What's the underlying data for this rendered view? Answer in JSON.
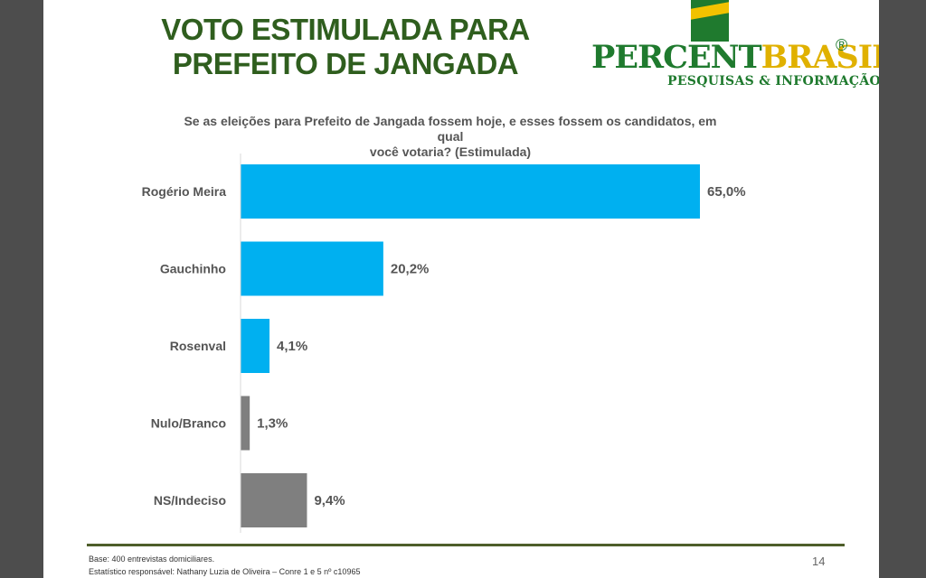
{
  "slide": {
    "title_line1": "VOTO ESTIMULADA PARA",
    "title_line2": "PREFEITO DE JANGADA",
    "question_line1": "Se as eleições para Prefeito de Jangada fossem hoje, e esses fossem os candidatos, em qual",
    "question_line2": "você votaria? (Estimulada)",
    "footer_base": "Base: 400 entrevistas domiciliares.",
    "footer_stat": "Estatístico responsável: Nathany Luzia de Oliveira – Conre 1 e 5 nº c10965",
    "page_number": "14"
  },
  "logo": {
    "word_part1": "PERCENT",
    "word_part2": "BRASIL",
    "registered": "®",
    "tagline": "PESQUISAS & INFORMAÇÃO",
    "colors": {
      "green": "#1f7a2e",
      "yellow": "#e0b100"
    }
  },
  "chart_data": {
    "type": "bar",
    "orientation": "horizontal",
    "title": "",
    "xlabel": "",
    "ylabel": "",
    "xlim": [
      0,
      65
    ],
    "grid": false,
    "categories": [
      "Rogério Meira",
      "Gauchinho",
      "Rosenval",
      "Nulo/Branco",
      "NS/Indeciso"
    ],
    "values": [
      65.0,
      20.2,
      4.1,
      1.3,
      9.4
    ],
    "value_labels": [
      "65,0%",
      "20,2%",
      "4,1%",
      "1,3%",
      "9,4%"
    ],
    "colors": [
      "#00b0f0",
      "#00b0f0",
      "#00b0f0",
      "#7f7f7f",
      "#7f7f7f"
    ]
  }
}
